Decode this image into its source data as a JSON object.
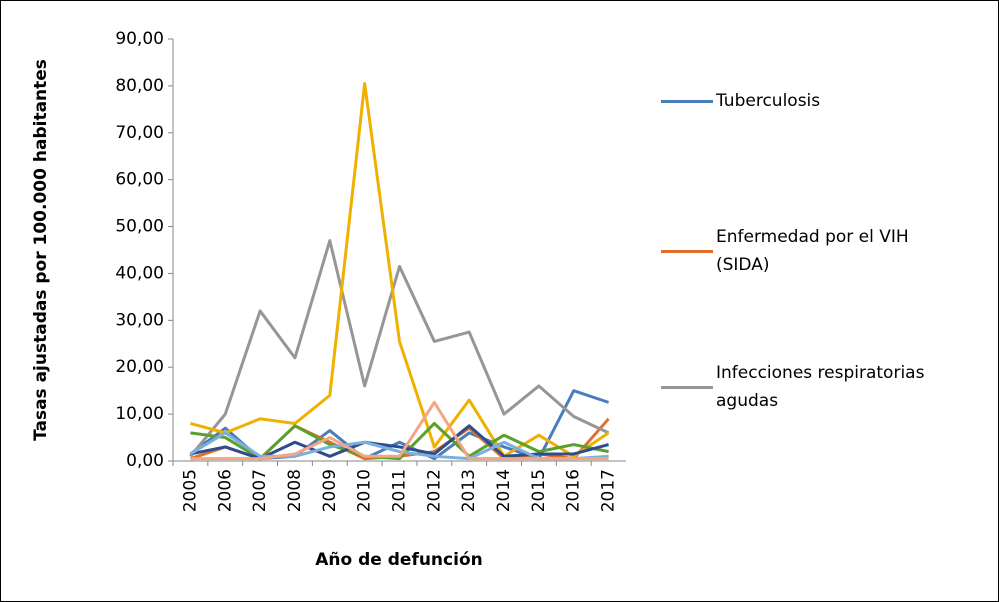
{
  "chart_data": {
    "type": "line",
    "y_label": "Tasas ajustadas por 100.000 habitantes",
    "x_label": "Año de defunción",
    "categories": [
      "2005",
      "2006",
      "2007",
      "2008",
      "2009",
      "2010",
      "2011",
      "2012",
      "2013",
      "2014",
      "2015",
      "2016",
      "2017"
    ],
    "series": [
      {
        "name": "Tuberculosis",
        "color": "#4a7ebb",
        "values": [
          1.5,
          7,
          0.5,
          1,
          6.5,
          0.5,
          4,
          0.5,
          6,
          3,
          0.5,
          15,
          12.5
        ]
      },
      {
        "name": "Enfermedad por el VIH (SIDA)",
        "color": "#e0702a",
        "values": [
          0.5,
          3,
          0.5,
          7.5,
          4,
          0.5,
          1,
          2,
          7,
          0.5,
          1.5,
          0.5,
          9
        ]
      },
      {
        "name": "Infecciones respiratorias agudas",
        "color": "#969696",
        "values": [
          1,
          10,
          32,
          22,
          47,
          16,
          41.5,
          25.5,
          27.5,
          10,
          16,
          9.5,
          6
        ]
      },
      {
        "color": "#f0b000",
        "values": [
          8,
          6,
          9,
          8,
          14,
          80.5,
          25.5,
          3,
          13,
          1,
          5.5,
          1,
          6
        ]
      },
      {
        "color": "#5aa02c",
        "values": [
          6,
          5,
          0.5,
          7.5,
          3.5,
          1,
          0.5,
          8,
          1,
          5.5,
          2,
          3.5,
          2
        ]
      },
      {
        "color": "#2f4c8f",
        "values": [
          1.5,
          3,
          0.5,
          4,
          1,
          4,
          3,
          1.5,
          7.5,
          1,
          1.5,
          1.5,
          3.5
        ]
      },
      {
        "color": "#7ab0e0",
        "values": [
          1.5,
          6,
          1,
          1,
          3,
          4,
          2,
          1,
          0.5,
          4,
          0.5,
          0.5,
          1
        ]
      },
      {
        "color": "#f4a582",
        "values": [
          0.5,
          0.5,
          0.5,
          1.5,
          5,
          1,
          1,
          12.5,
          0.5,
          0.5,
          0.5,
          0.5,
          0.5
        ]
      }
    ],
    "ylim": [
      0,
      90
    ],
    "yticks": [
      {
        "value": 0,
        "label": "0,00"
      },
      {
        "value": 10,
        "label": "10,00"
      },
      {
        "value": 20,
        "label": "20,00"
      },
      {
        "value": 30,
        "label": "30,00"
      },
      {
        "value": 40,
        "label": "40,00"
      },
      {
        "value": 50,
        "label": "50,00"
      },
      {
        "value": 60,
        "label": "60,00"
      },
      {
        "value": 70,
        "label": "70,00"
      },
      {
        "value": 80,
        "label": "80,00"
      },
      {
        "value": 90,
        "label": "90,00"
      }
    ],
    "grid": false,
    "legend": "right"
  }
}
